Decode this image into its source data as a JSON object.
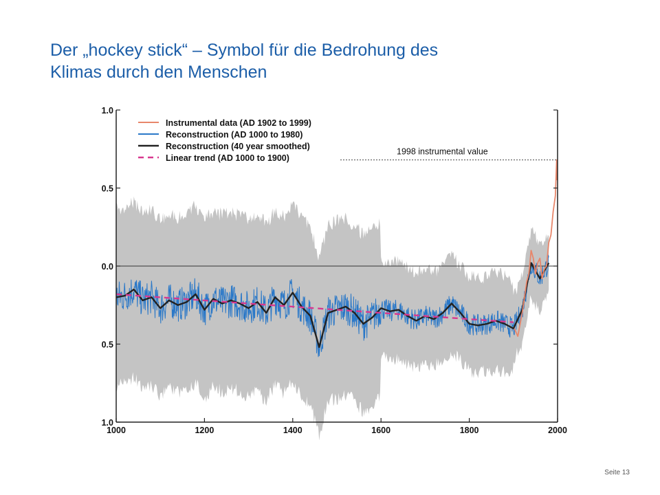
{
  "slide": {
    "title_line1": "Der „hockey stick“ – Symbol für die Bedrohung des",
    "title_line2": "Klimas durch den Menschen",
    "footer": "Seite 13"
  },
  "colors": {
    "title": "#1c5ea8",
    "instrumental": "#e8866a",
    "reconstruction": "#2a78c8",
    "smoothed": "#222222",
    "trend": "#d8388f",
    "uncertainty": "#c4c4c4"
  },
  "chart_data": {
    "type": "line",
    "xlim": [
      1000,
      2000
    ],
    "ylim": [
      -1.0,
      1.0
    ],
    "x_ticks": [
      "1000",
      "1200",
      "1400",
      "1600",
      "1800",
      "2000"
    ],
    "y_ticks": [
      "1.0",
      "0.5",
      "0.0",
      "0.5",
      "1.0"
    ],
    "grid": false,
    "legend_position": "top-left",
    "legend": [
      "Instrumental data (AD 1902 to 1999)",
      "Reconstruction (AD 1000 to 1980)",
      "Reconstruction (40 year smoothed)",
      "Linear trend (AD 1000 to 1900)"
    ],
    "annotation": {
      "label": "1998 instrumental value",
      "value": 0.68
    },
    "series": [
      {
        "name": "Reconstruction (40 year smoothed)",
        "style": "smoothed",
        "x": [
          1000,
          1020,
          1040,
          1060,
          1080,
          1100,
          1120,
          1140,
          1160,
          1180,
          1200,
          1220,
          1240,
          1260,
          1280,
          1300,
          1320,
          1340,
          1360,
          1380,
          1400,
          1420,
          1440,
          1460,
          1480,
          1500,
          1520,
          1540,
          1560,
          1580,
          1600,
          1620,
          1640,
          1660,
          1680,
          1700,
          1720,
          1740,
          1760,
          1780,
          1800,
          1820,
          1840,
          1860,
          1880,
          1900,
          1920,
          1940,
          1960,
          1980
        ],
        "y": [
          -0.2,
          -0.19,
          -0.15,
          -0.22,
          -0.2,
          -0.27,
          -0.22,
          -0.25,
          -0.23,
          -0.18,
          -0.28,
          -0.21,
          -0.24,
          -0.22,
          -0.24,
          -0.27,
          -0.23,
          -0.3,
          -0.2,
          -0.25,
          -0.17,
          -0.26,
          -0.32,
          -0.52,
          -0.3,
          -0.28,
          -0.26,
          -0.3,
          -0.37,
          -0.33,
          -0.27,
          -0.29,
          -0.28,
          -0.32,
          -0.35,
          -0.32,
          -0.34,
          -0.3,
          -0.24,
          -0.3,
          -0.37,
          -0.38,
          -0.37,
          -0.35,
          -0.37,
          -0.4,
          -0.28,
          0.02,
          -0.08,
          0.02
        ]
      },
      {
        "name": "Linear trend (AD 1000 to 1900)",
        "style": "trend",
        "x": [
          1000,
          1900
        ],
        "y": [
          -0.18,
          -0.36
        ]
      },
      {
        "name": "Instrumental data (AD 1902 to 1999)",
        "style": "instrumental",
        "x": [
          1902,
          1910,
          1920,
          1925,
          1930,
          1935,
          1940,
          1945,
          1950,
          1955,
          1960,
          1965,
          1970,
          1975,
          1980,
          1985,
          1990,
          1995,
          1998,
          1999
        ],
        "y": [
          -0.4,
          -0.45,
          -0.3,
          -0.2,
          -0.1,
          -0.05,
          0.1,
          0.05,
          -0.05,
          0.02,
          0.05,
          -0.08,
          -0.02,
          0.0,
          0.15,
          0.2,
          0.35,
          0.45,
          0.68,
          0.55
        ]
      }
    ]
  }
}
